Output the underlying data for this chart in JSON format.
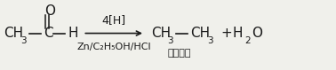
{
  "bg_color": "#f0f0eb",
  "text_color": "#1a1a1a",
  "arrow_above": "4[H]",
  "arrow_below": "Zn/C₂H₅OH/HCl",
  "product_label": "एथेन",
  "fs_main": 11,
  "fs_sub": 7.5,
  "fs_arrow": 9,
  "fs_below": 8,
  "fs_label": 8
}
